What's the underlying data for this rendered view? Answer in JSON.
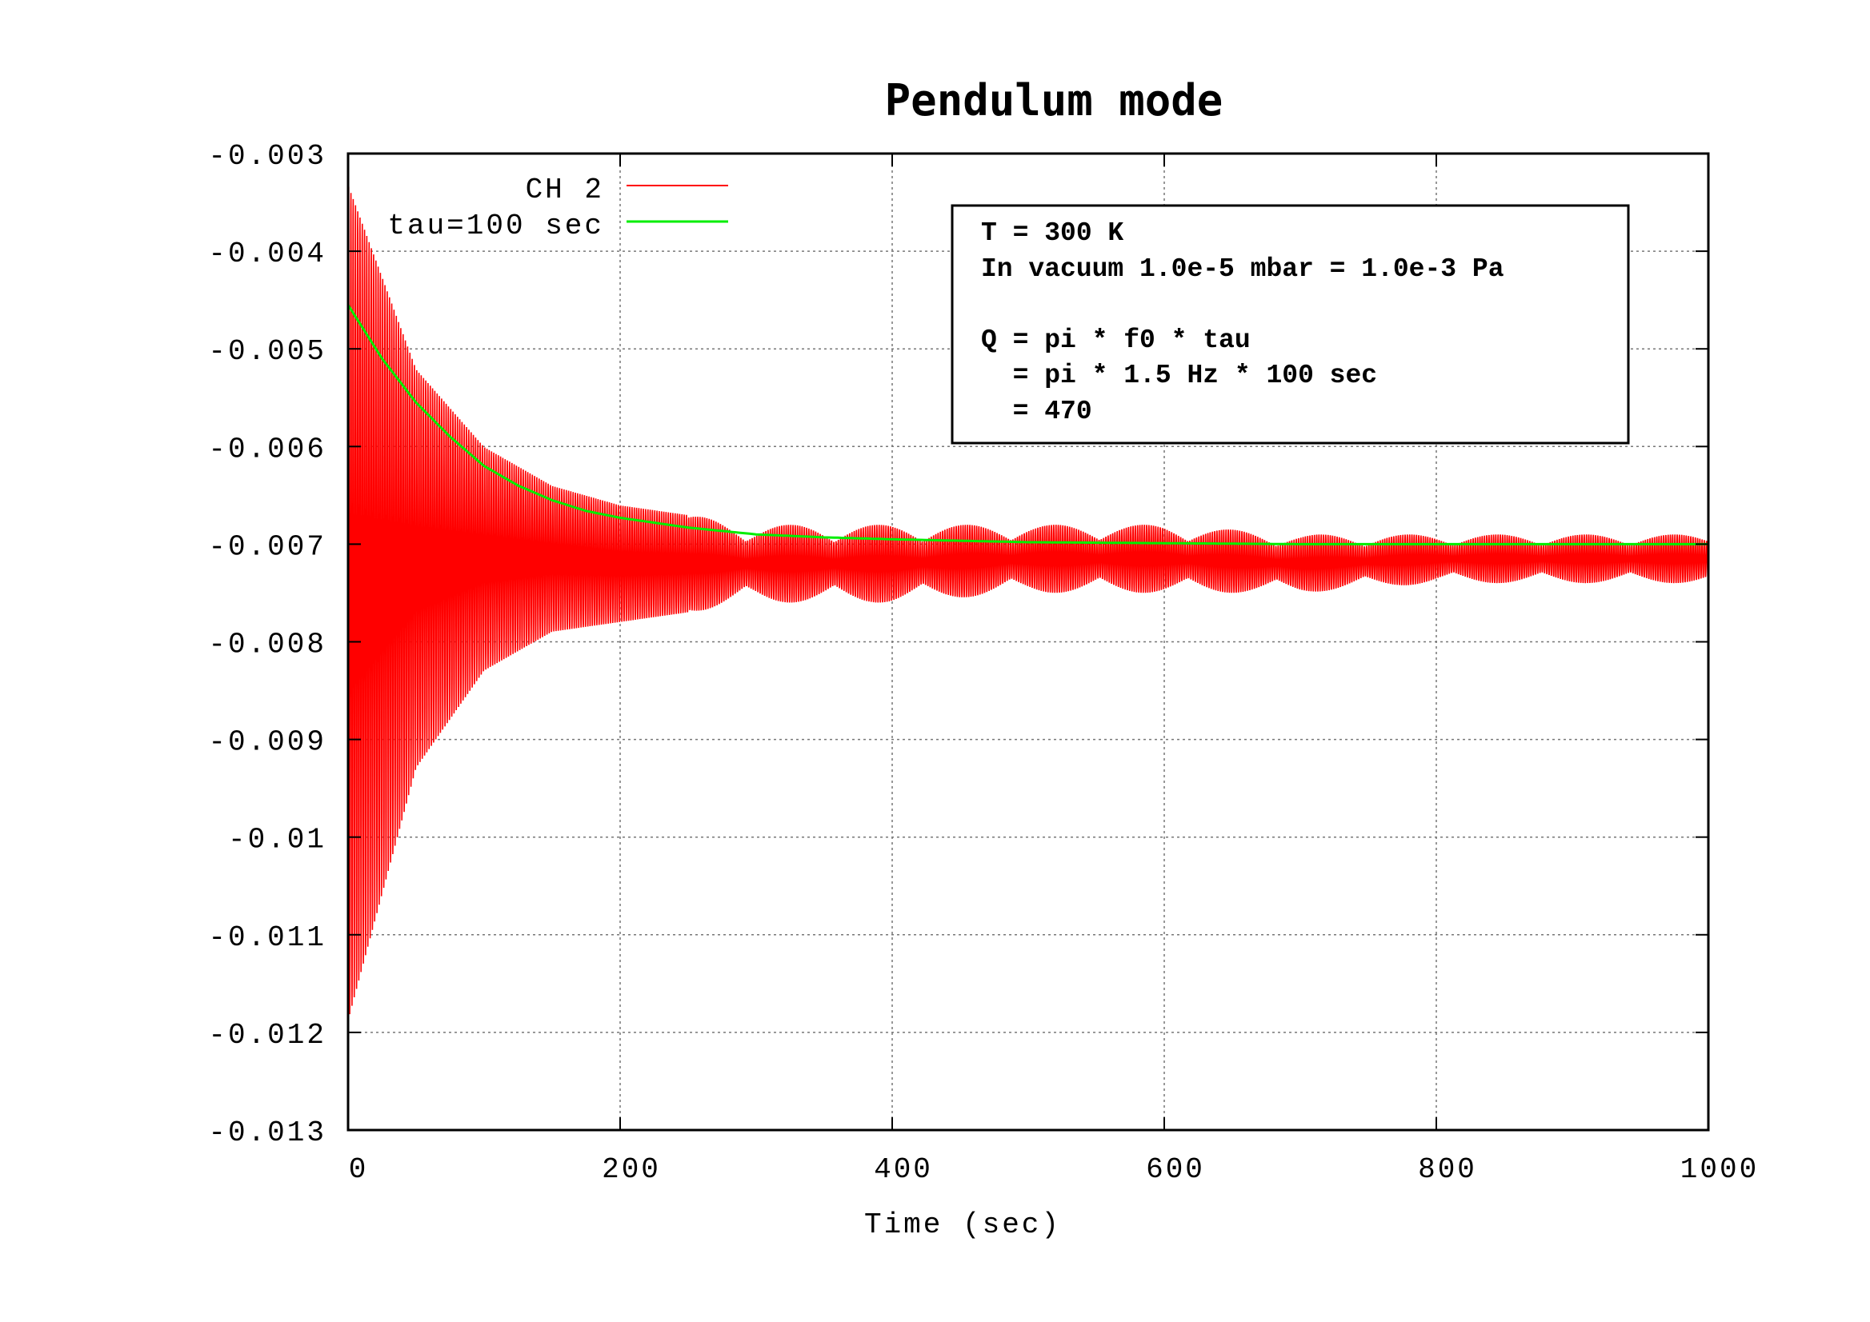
{
  "chart_data": {
    "type": "line",
    "title": "Pendulum mode",
    "xlabel": "Time (sec)",
    "ylabel": "",
    "xlim": [
      0,
      1000
    ],
    "ylim": [
      -0.013,
      -0.003
    ],
    "x_ticks": [
      0,
      200,
      400,
      600,
      800,
      1000
    ],
    "x_tick_labels": [
      "0",
      "200",
      "400",
      "600",
      "800",
      "1000"
    ],
    "y_ticks": [
      -0.003,
      -0.004,
      -0.005,
      -0.006,
      -0.007,
      -0.008,
      -0.009,
      -0.01,
      -0.011,
      -0.012,
      -0.013
    ],
    "y_tick_labels": [
      "-0.003",
      "-0.004",
      "-0.005",
      "-0.006",
      "-0.007",
      "-0.008",
      "-0.009",
      "-0.01",
      "-0.011",
      "-0.012",
      "-0.013"
    ],
    "grid": true,
    "legend_position": "top-left",
    "series": [
      {
        "name": "CH 2",
        "color": "#ff0000",
        "style": "oscillation",
        "description_values": {
          "baseline": -0.0071,
          "initial_max": -0.0033,
          "initial_min": -0.0119,
          "envelope_x": [
            0,
            50,
            100,
            150,
            200,
            250,
            300,
            400,
            500,
            600,
            700,
            800,
            900,
            1000
          ],
          "envelope_upper": [
            -0.0033,
            -0.0052,
            -0.006,
            -0.0064,
            -0.0066,
            -0.0067,
            -0.0068,
            -0.0068,
            -0.0068,
            -0.0068,
            -0.0069,
            -0.0069,
            -0.0069,
            -0.0069
          ],
          "envelope_lower": [
            -0.0119,
            -0.0093,
            -0.0083,
            -0.0079,
            -0.0078,
            -0.0077,
            -0.0076,
            -0.0076,
            -0.0075,
            -0.0075,
            -0.0075,
            -0.0074,
            -0.0074,
            -0.0074
          ]
        }
      },
      {
        "name": "tau=100 sec",
        "color": "#00ee00",
        "style": "line",
        "x": [
          0,
          25,
          50,
          75,
          100,
          125,
          150,
          175,
          200,
          250,
          300,
          350,
          400,
          500,
          600,
          700,
          800,
          900,
          1000
        ],
        "y": [
          -0.00455,
          -0.0051,
          -0.00555,
          -0.0059,
          -0.0062,
          -0.0064,
          -0.00655,
          -0.00666,
          -0.00673,
          -0.00683,
          -0.0069,
          -0.00693,
          -0.00695,
          -0.00698,
          -0.00699,
          -0.007,
          -0.007,
          -0.007,
          -0.007
        ]
      }
    ],
    "annotation_lines": [
      "T = 300 K",
      "In vacuum 1.0e-5 mbar = 1.0e-3 Pa",
      "",
      "Q = pi * f0 * tau",
      "  = pi * 1.5 Hz * 100 sec",
      "  = 470"
    ]
  }
}
